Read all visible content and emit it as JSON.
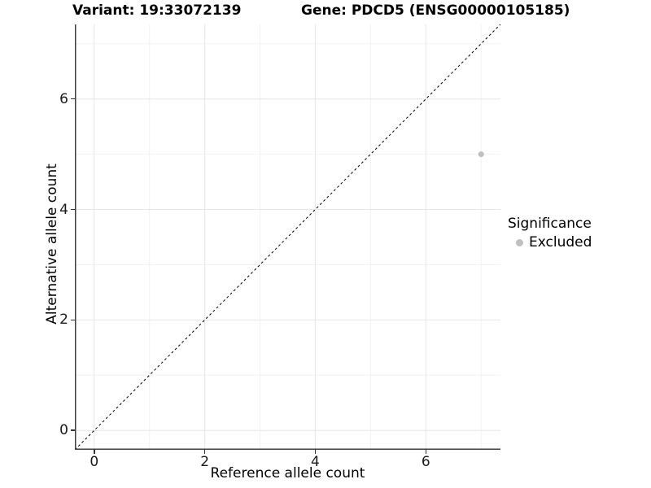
{
  "chart_data": {
    "type": "scatter",
    "titles": {
      "left": "Variant: 19:33072139",
      "right": "Gene: PDCD5 (ENSG00000105185)"
    },
    "xlabel": "Reference allele count",
    "ylabel": "Alternative allele count",
    "xlim": [
      -0.35,
      7.35
    ],
    "ylim": [
      -0.35,
      7.35
    ],
    "x_major_ticks": [
      0,
      2,
      4,
      6
    ],
    "y_major_ticks": [
      0,
      2,
      4,
      6
    ],
    "x_minor_ticks": [
      1,
      3,
      5,
      7
    ],
    "y_minor_ticks": [
      1,
      3,
      5,
      7
    ],
    "grid": true,
    "identity_line": {
      "shown": true,
      "style": "dashed",
      "from": [
        -0.35,
        -0.35
      ],
      "to": [
        7.35,
        7.35
      ]
    },
    "series": [
      {
        "name": "Excluded",
        "color": "#bfbfbf",
        "points": [
          {
            "x": 7,
            "y": 5
          }
        ]
      }
    ],
    "legend": {
      "title": "Significance",
      "position": "right",
      "entries": [
        {
          "label": "Excluded",
          "color": "#bfbfbf"
        }
      ]
    },
    "colors": {
      "background": "#ffffff",
      "grid_major": "#e6e6e6",
      "grid_minor": "#f2f2f2",
      "axis_line": "#3f3f3f",
      "tick_mark": "#333333",
      "dashed_line": "#000000",
      "text": "#000000"
    }
  }
}
